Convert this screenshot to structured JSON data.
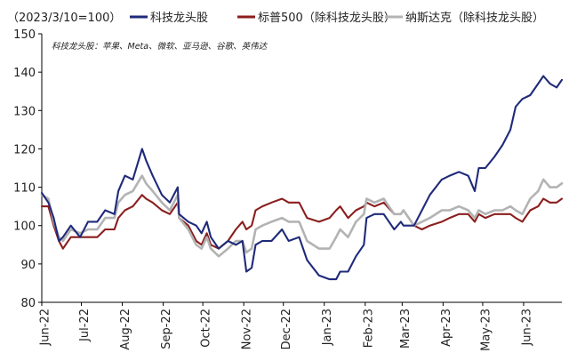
{
  "chart_data": {
    "type": "line",
    "unit_label": "（2023/3/10=100）",
    "note": "科技龙头股：苹果、Meta、微软、亚马逊、谷歌、英伟达",
    "ylim": [
      80,
      150
    ],
    "yticks": [
      80,
      90,
      100,
      110,
      120,
      130,
      140,
      150
    ],
    "x_range": [
      "2022-06-01",
      "2023-06-30"
    ],
    "xticks": [
      "Jun-22",
      "Jul-22",
      "Aug-22",
      "Sep-22",
      "Oct-22",
      "Nov-22",
      "Dec-22",
      "Jan-23",
      "Feb-23",
      "Mar-23",
      "Apr-23",
      "May-23",
      "Jun-23"
    ],
    "legend_position": "top",
    "grid": false,
    "series": [
      {
        "name": "科技龙头股",
        "color": "#1f2a7a",
        "points": [
          [
            "2022-06-01",
            108.5
          ],
          [
            "2022-06-06",
            106
          ],
          [
            "2022-06-10",
            102
          ],
          [
            "2022-06-14",
            96
          ],
          [
            "2022-06-17",
            97
          ],
          [
            "2022-06-23",
            100
          ],
          [
            "2022-06-30",
            97
          ],
          [
            "2022-07-06",
            101
          ],
          [
            "2022-07-13",
            101
          ],
          [
            "2022-07-19",
            104
          ],
          [
            "2022-07-26",
            103
          ],
          [
            "2022-07-29",
            109
          ],
          [
            "2022-08-03",
            113
          ],
          [
            "2022-08-09",
            112
          ],
          [
            "2022-08-16",
            120
          ],
          [
            "2022-08-19",
            117
          ],
          [
            "2022-08-24",
            113
          ],
          [
            "2022-08-31",
            108
          ],
          [
            "2022-09-06",
            106
          ],
          [
            "2022-09-12",
            110
          ],
          [
            "2022-09-13",
            103
          ],
          [
            "2022-09-20",
            101
          ],
          [
            "2022-09-26",
            100
          ],
          [
            "2022-09-30",
            98
          ],
          [
            "2022-10-04",
            101
          ],
          [
            "2022-10-07",
            97
          ],
          [
            "2022-10-13",
            94
          ],
          [
            "2022-10-20",
            96
          ],
          [
            "2022-10-26",
            95
          ],
          [
            "2022-10-31",
            96
          ],
          [
            "2022-11-03",
            88
          ],
          [
            "2022-11-07",
            89
          ],
          [
            "2022-11-10",
            95
          ],
          [
            "2022-11-15",
            96
          ],
          [
            "2022-11-22",
            96
          ],
          [
            "2022-11-30",
            99
          ],
          [
            "2022-12-05",
            96
          ],
          [
            "2022-12-13",
            97
          ],
          [
            "2022-12-19",
            91
          ],
          [
            "2022-12-28",
            87
          ],
          [
            "2023-01-05",
            86
          ],
          [
            "2023-01-10",
            86
          ],
          [
            "2023-01-13",
            88
          ],
          [
            "2023-01-19",
            88
          ],
          [
            "2023-01-25",
            92
          ],
          [
            "2023-01-31",
            95
          ],
          [
            "2023-02-02",
            102
          ],
          [
            "2023-02-08",
            103
          ],
          [
            "2023-02-15",
            103
          ],
          [
            "2023-02-23",
            99
          ],
          [
            "2023-02-28",
            101
          ],
          [
            "2023-03-02",
            100
          ],
          [
            "2023-03-10",
            100
          ],
          [
            "2023-03-16",
            104
          ],
          [
            "2023-03-22",
            108
          ],
          [
            "2023-03-31",
            112
          ],
          [
            "2023-04-06",
            113
          ],
          [
            "2023-04-13",
            114
          ],
          [
            "2023-04-20",
            113
          ],
          [
            "2023-04-25",
            109
          ],
          [
            "2023-04-28",
            115
          ],
          [
            "2023-05-03",
            115
          ],
          [
            "2023-05-10",
            118
          ],
          [
            "2023-05-16",
            121
          ],
          [
            "2023-05-22",
            125
          ],
          [
            "2023-05-26",
            131
          ],
          [
            "2023-05-31",
            133
          ],
          [
            "2023-06-06",
            134
          ],
          [
            "2023-06-12",
            137
          ],
          [
            "2023-06-16",
            139
          ],
          [
            "2023-06-21",
            137
          ],
          [
            "2023-06-26",
            136
          ],
          [
            "2023-06-30",
            138
          ]
        ]
      },
      {
        "name": "标普500（除科技龙头股）",
        "color": "#8b1e1e",
        "points": [
          [
            "2022-06-01",
            105
          ],
          [
            "2022-06-06",
            105
          ],
          [
            "2022-06-10",
            100
          ],
          [
            "2022-06-14",
            96
          ],
          [
            "2022-06-17",
            94
          ],
          [
            "2022-06-23",
            97
          ],
          [
            "2022-06-30",
            97
          ],
          [
            "2022-07-06",
            97
          ],
          [
            "2022-07-13",
            97
          ],
          [
            "2022-07-19",
            99
          ],
          [
            "2022-07-26",
            99
          ],
          [
            "2022-07-29",
            102
          ],
          [
            "2022-08-03",
            104
          ],
          [
            "2022-08-09",
            105
          ],
          [
            "2022-08-16",
            108
          ],
          [
            "2022-08-19",
            107
          ],
          [
            "2022-08-24",
            106
          ],
          [
            "2022-08-31",
            104
          ],
          [
            "2022-09-06",
            103
          ],
          [
            "2022-09-12",
            106
          ],
          [
            "2022-09-13",
            102
          ],
          [
            "2022-09-20",
            100
          ],
          [
            "2022-09-26",
            96
          ],
          [
            "2022-09-30",
            95
          ],
          [
            "2022-10-04",
            98
          ],
          [
            "2022-10-07",
            95
          ],
          [
            "2022-10-13",
            94
          ],
          [
            "2022-10-20",
            96
          ],
          [
            "2022-10-26",
            99
          ],
          [
            "2022-10-31",
            101
          ],
          [
            "2022-11-03",
            99
          ],
          [
            "2022-11-07",
            100
          ],
          [
            "2022-11-10",
            104
          ],
          [
            "2022-11-15",
            105
          ],
          [
            "2022-11-22",
            106
          ],
          [
            "2022-11-30",
            107
          ],
          [
            "2022-12-05",
            106
          ],
          [
            "2022-12-13",
            106
          ],
          [
            "2022-12-19",
            102
          ],
          [
            "2022-12-28",
            101
          ],
          [
            "2023-01-05",
            102
          ],
          [
            "2023-01-10",
            104
          ],
          [
            "2023-01-13",
            105
          ],
          [
            "2023-01-19",
            102
          ],
          [
            "2023-01-25",
            104
          ],
          [
            "2023-01-31",
            105
          ],
          [
            "2023-02-02",
            106
          ],
          [
            "2023-02-08",
            105
          ],
          [
            "2023-02-15",
            106
          ],
          [
            "2023-02-23",
            103
          ],
          [
            "2023-02-28",
            103
          ],
          [
            "2023-03-02",
            104
          ],
          [
            "2023-03-10",
            100
          ],
          [
            "2023-03-16",
            99
          ],
          [
            "2023-03-22",
            100
          ],
          [
            "2023-03-31",
            101
          ],
          [
            "2023-04-06",
            102
          ],
          [
            "2023-04-13",
            103
          ],
          [
            "2023-04-20",
            103
          ],
          [
            "2023-04-25",
            101
          ],
          [
            "2023-04-28",
            103
          ],
          [
            "2023-05-03",
            102
          ],
          [
            "2023-05-10",
            103
          ],
          [
            "2023-05-16",
            103
          ],
          [
            "2023-05-22",
            103
          ],
          [
            "2023-05-26",
            102
          ],
          [
            "2023-05-31",
            101
          ],
          [
            "2023-06-06",
            104
          ],
          [
            "2023-06-12",
            105
          ],
          [
            "2023-06-16",
            107
          ],
          [
            "2023-06-21",
            106
          ],
          [
            "2023-06-26",
            106
          ],
          [
            "2023-06-30",
            107
          ]
        ]
      },
      {
        "name": "纳斯达克（除科技龙头股）",
        "color": "#b3b3b3",
        "points": [
          [
            "2022-06-01",
            108
          ],
          [
            "2022-06-06",
            107
          ],
          [
            "2022-06-10",
            101
          ],
          [
            "2022-06-14",
            97
          ],
          [
            "2022-06-17",
            96
          ],
          [
            "2022-06-23",
            99
          ],
          [
            "2022-06-30",
            98
          ],
          [
            "2022-07-06",
            99
          ],
          [
            "2022-07-13",
            99
          ],
          [
            "2022-07-19",
            102
          ],
          [
            "2022-07-26",
            102
          ],
          [
            "2022-07-29",
            106
          ],
          [
            "2022-08-03",
            108
          ],
          [
            "2022-08-09",
            109
          ],
          [
            "2022-08-16",
            113
          ],
          [
            "2022-08-19",
            111
          ],
          [
            "2022-08-24",
            109
          ],
          [
            "2022-08-31",
            106
          ],
          [
            "2022-09-06",
            104
          ],
          [
            "2022-09-12",
            108
          ],
          [
            "2022-09-13",
            102
          ],
          [
            "2022-09-20",
            99
          ],
          [
            "2022-09-26",
            95
          ],
          [
            "2022-09-30",
            94
          ],
          [
            "2022-10-04",
            97
          ],
          [
            "2022-10-07",
            94
          ],
          [
            "2022-10-13",
            92
          ],
          [
            "2022-10-20",
            94
          ],
          [
            "2022-10-26",
            96
          ],
          [
            "2022-10-31",
            96
          ],
          [
            "2022-11-03",
            93
          ],
          [
            "2022-11-07",
            94
          ],
          [
            "2022-11-10",
            99
          ],
          [
            "2022-11-15",
            100
          ],
          [
            "2022-11-22",
            101
          ],
          [
            "2022-11-30",
            102
          ],
          [
            "2022-12-05",
            101
          ],
          [
            "2022-12-13",
            101
          ],
          [
            "2022-12-19",
            96
          ],
          [
            "2022-12-28",
            94
          ],
          [
            "2023-01-05",
            94
          ],
          [
            "2023-01-10",
            97
          ],
          [
            "2023-01-13",
            99
          ],
          [
            "2023-01-19",
            97
          ],
          [
            "2023-01-25",
            101
          ],
          [
            "2023-01-31",
            103
          ],
          [
            "2023-02-02",
            107
          ],
          [
            "2023-02-08",
            106
          ],
          [
            "2023-02-15",
            107
          ],
          [
            "2023-02-23",
            103
          ],
          [
            "2023-02-28",
            103
          ],
          [
            "2023-03-02",
            104
          ],
          [
            "2023-03-10",
            100
          ],
          [
            "2023-03-16",
            101
          ],
          [
            "2023-03-22",
            102
          ],
          [
            "2023-03-31",
            104
          ],
          [
            "2023-04-06",
            104
          ],
          [
            "2023-04-13",
            105
          ],
          [
            "2023-04-20",
            104
          ],
          [
            "2023-04-25",
            102
          ],
          [
            "2023-04-28",
            104
          ],
          [
            "2023-05-03",
            103
          ],
          [
            "2023-05-10",
            104
          ],
          [
            "2023-05-16",
            104
          ],
          [
            "2023-05-22",
            105
          ],
          [
            "2023-05-26",
            104
          ],
          [
            "2023-05-31",
            103
          ],
          [
            "2023-06-06",
            107
          ],
          [
            "2023-06-12",
            109
          ],
          [
            "2023-06-16",
            112
          ],
          [
            "2023-06-21",
            110
          ],
          [
            "2023-06-26",
            110
          ],
          [
            "2023-06-30",
            111
          ]
        ]
      }
    ]
  }
}
